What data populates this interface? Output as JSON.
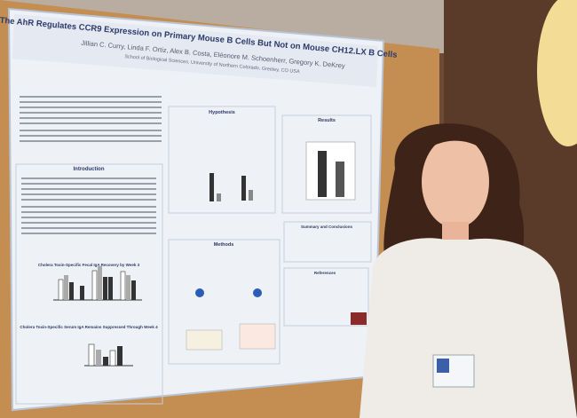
{
  "poster": {
    "title": "The AhR Regulates CCR9 Expression on Primary Mouse B Cells But Not on Mouse CH12.LX B Cells",
    "authors": "Jillian C. Curry, Linda F. Ortiz, Alex B. Costa, Eléonore M. Schoenherr, Gregory K. DeKrey",
    "affiliation": "School of Biological Sciences, University of Northern Colorado, Greeley, CO USA",
    "sections": [
      "Introduction",
      "Hypothesis",
      "Methods",
      "Results",
      "Summary and Conclusions",
      "References"
    ],
    "figures": [
      "Cholera Toxin-Specific Fecal IgA Recovery by Week 3",
      "Cholera Toxin-Specific Serum IgA Remains Suppressed Through Week 4"
    ]
  }
}
